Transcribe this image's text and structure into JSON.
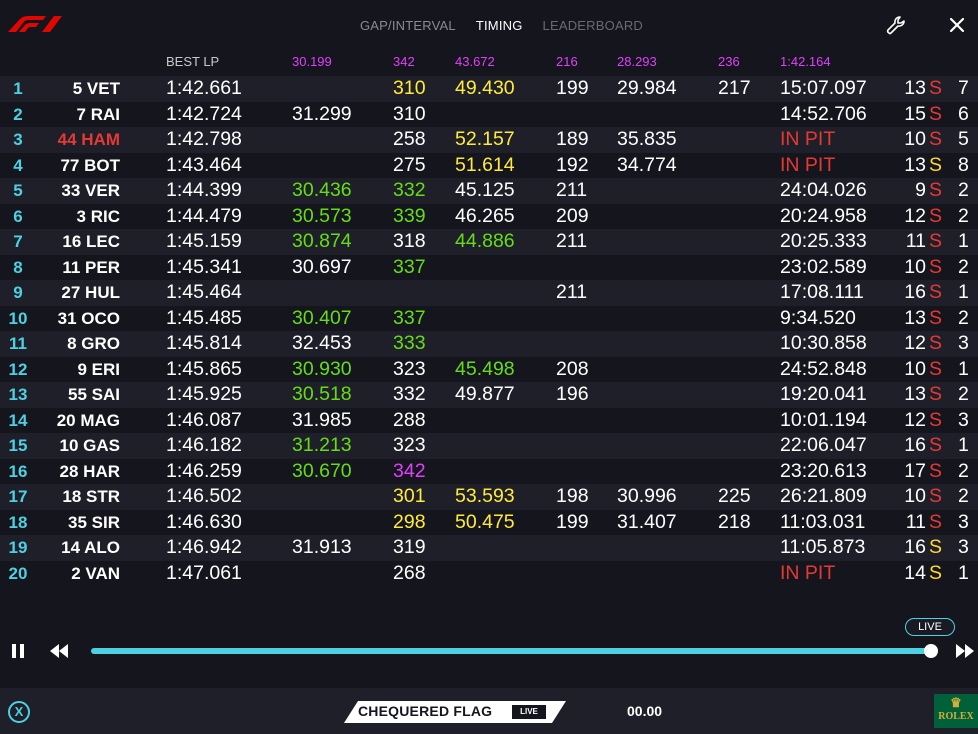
{
  "header": {
    "tabs": [
      {
        "label": "GAP/INTERVAL",
        "active": false
      },
      {
        "label": "TIMING",
        "active": true
      },
      {
        "label": "LEADERBOARD",
        "active": false
      }
    ]
  },
  "columns": {
    "best": "BEST LP",
    "s1_best": "30.199",
    "sp1_best": "342",
    "s2_best": "43.672",
    "sp2_best": "216",
    "s3_best": "28.293",
    "sp3_best": "236",
    "best_lap": "1:42.164"
  },
  "rows": [
    {
      "pos": "1",
      "driver": "5 VET",
      "best": "1:42.661",
      "s1": "",
      "sp1": "310",
      "s2": "49.430",
      "sp2": "199",
      "s3": "29.984",
      "sp3": "217",
      "gap": "15:07.097",
      "laps": "13",
      "tyre": "S",
      "stint": "7"
    },
    {
      "pos": "2",
      "driver": "7 RAI",
      "best": "1:42.724",
      "s1": "31.299",
      "sp1": "310",
      "s2": "",
      "sp2": "",
      "s3": "",
      "sp3": "",
      "gap": "14:52.706",
      "laps": "15",
      "tyre": "S",
      "stint": "6"
    },
    {
      "pos": "3",
      "driver": "44 HAM",
      "best": "1:42.798",
      "s1": "",
      "sp1": "258",
      "s2": "52.157",
      "sp2": "189",
      "s3": "35.835",
      "sp3": "",
      "gap": "IN PIT",
      "laps": "10",
      "tyre": "S",
      "stint": "5"
    },
    {
      "pos": "4",
      "driver": "77 BOT",
      "best": "1:43.464",
      "s1": "",
      "sp1": "275",
      "s2": "51.614",
      "sp2": "192",
      "s3": "34.774",
      "sp3": "",
      "gap": "IN PIT",
      "laps": "13",
      "tyre": "S",
      "stint": "8"
    },
    {
      "pos": "5",
      "driver": "33 VER",
      "best": "1:44.399",
      "s1": "30.436",
      "sp1": "332",
      "s2": "45.125",
      "sp2": "211",
      "s3": "",
      "sp3": "",
      "gap": "24:04.026",
      "laps": "9",
      "tyre": "S",
      "stint": "2"
    },
    {
      "pos": "6",
      "driver": "3 RIC",
      "best": "1:44.479",
      "s1": "30.573",
      "sp1": "339",
      "s2": "46.265",
      "sp2": "209",
      "s3": "",
      "sp3": "",
      "gap": "20:24.958",
      "laps": "12",
      "tyre": "S",
      "stint": "2"
    },
    {
      "pos": "7",
      "driver": "16 LEC",
      "best": "1:45.159",
      "s1": "30.874",
      "sp1": "318",
      "s2": "44.886",
      "sp2": "211",
      "s3": "",
      "sp3": "",
      "gap": "20:25.333",
      "laps": "11",
      "tyre": "S",
      "stint": "1"
    },
    {
      "pos": "8",
      "driver": "11 PER",
      "best": "1:45.341",
      "s1": "30.697",
      "sp1": "337",
      "s2": "",
      "sp2": "",
      "s3": "",
      "sp3": "",
      "gap": "23:02.589",
      "laps": "10",
      "tyre": "S",
      "stint": "2"
    },
    {
      "pos": "9",
      "driver": "27 HUL",
      "best": "1:45.464",
      "s1": "",
      "sp1": "",
      "s2": "",
      "sp2": "211",
      "s3": "",
      "sp3": "",
      "gap": "17:08.111",
      "laps": "16",
      "tyre": "S",
      "stint": "1"
    },
    {
      "pos": "10",
      "driver": "31 OCO",
      "best": "1:45.485",
      "s1": "30.407",
      "sp1": "337",
      "s2": "",
      "sp2": "",
      "s3": "",
      "sp3": "",
      "gap": "9:34.520",
      "laps": "13",
      "tyre": "S",
      "stint": "2"
    },
    {
      "pos": "11",
      "driver": "8 GRO",
      "best": "1:45.814",
      "s1": "32.453",
      "sp1": "333",
      "s2": "",
      "sp2": "",
      "s3": "",
      "sp3": "",
      "gap": "10:30.858",
      "laps": "12",
      "tyre": "S",
      "stint": "3"
    },
    {
      "pos": "12",
      "driver": "9 ERI",
      "best": "1:45.865",
      "s1": "30.930",
      "sp1": "323",
      "s2": "45.498",
      "sp2": "208",
      "s3": "",
      "sp3": "",
      "gap": "24:52.848",
      "laps": "10",
      "tyre": "S",
      "stint": "1"
    },
    {
      "pos": "13",
      "driver": "55 SAI",
      "best": "1:45.925",
      "s1": "30.518",
      "sp1": "332",
      "s2": "49.877",
      "sp2": "196",
      "s3": "",
      "sp3": "",
      "gap": "19:20.041",
      "laps": "13",
      "tyre": "S",
      "stint": "2"
    },
    {
      "pos": "14",
      "driver": "20 MAG",
      "best": "1:46.087",
      "s1": "31.985",
      "sp1": "288",
      "s2": "",
      "sp2": "",
      "s3": "",
      "sp3": "",
      "gap": "10:01.194",
      "laps": "12",
      "tyre": "S",
      "stint": "3"
    },
    {
      "pos": "15",
      "driver": "10 GAS",
      "best": "1:46.182",
      "s1": "31.213",
      "sp1": "323",
      "s2": "",
      "sp2": "",
      "s3": "",
      "sp3": "",
      "gap": "22:06.047",
      "laps": "16",
      "tyre": "S",
      "stint": "1"
    },
    {
      "pos": "16",
      "driver": "28 HAR",
      "best": "1:46.259",
      "s1": "30.670",
      "sp1": "342",
      "s2": "",
      "sp2": "",
      "s3": "",
      "sp3": "",
      "gap": "23:20.613",
      "laps": "17",
      "tyre": "S",
      "stint": "2"
    },
    {
      "pos": "17",
      "driver": "18 STR",
      "best": "1:46.502",
      "s1": "",
      "sp1": "301",
      "s2": "53.593",
      "sp2": "198",
      "s3": "30.996",
      "sp3": "225",
      "gap": "26:21.809",
      "laps": "10",
      "tyre": "S",
      "stint": "2"
    },
    {
      "pos": "18",
      "driver": "35 SIR",
      "best": "1:46.630",
      "s1": "",
      "sp1": "298",
      "s2": "50.475",
      "sp2": "199",
      "s3": "31.407",
      "sp3": "218",
      "gap": "11:03.031",
      "laps": "11",
      "tyre": "S",
      "stint": "3"
    },
    {
      "pos": "19",
      "driver": "14 ALO",
      "best": "1:46.942",
      "s1": "31.913",
      "sp1": "319",
      "s2": "",
      "sp2": "",
      "s3": "",
      "sp3": "",
      "gap": "11:05.873",
      "laps": "16",
      "tyre": "S",
      "stint": "3"
    },
    {
      "pos": "20",
      "driver": "2 VAN",
      "best": "1:47.061",
      "s1": "",
      "sp1": "268",
      "s2": "",
      "sp2": "",
      "s3": "",
      "sp3": "",
      "gap": "IN PIT",
      "laps": "14",
      "tyre": "S",
      "stint": "1"
    }
  ],
  "player": {
    "live_badge": "LIVE",
    "progress": 1.0,
    "accent": "#4dd0e1"
  },
  "footer": {
    "x_label": "X",
    "flag_text": "CHEQUERED FLAG",
    "flag_live": "LIVE",
    "timer": "00.00",
    "sponsor_crown": "♛",
    "sponsor": "ROLEX"
  }
}
